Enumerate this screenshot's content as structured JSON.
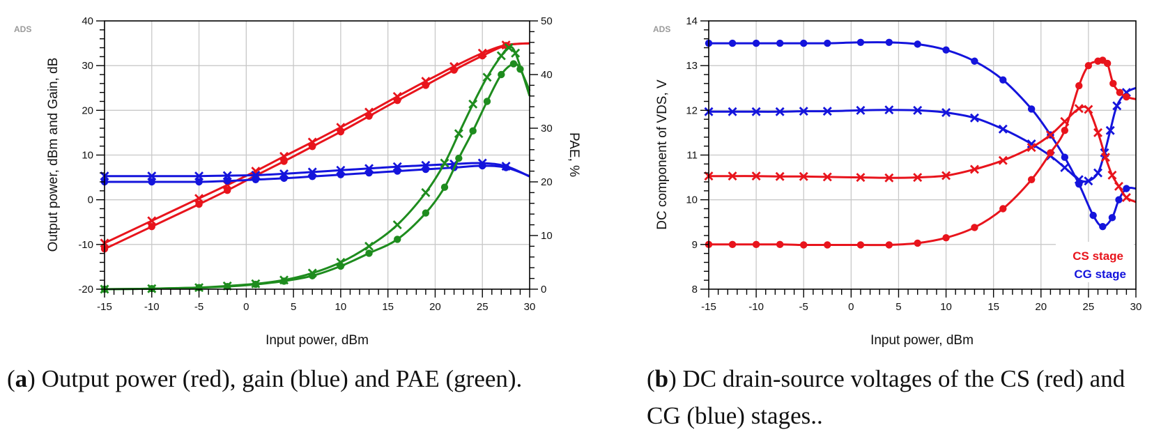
{
  "chart_data": [
    {
      "id": "a",
      "type": "line",
      "watermark": "ADS",
      "xlabel": "Input power, dBm",
      "ylabel": "Output power, dBm and Gain, dB",
      "y2label": "PAE, %",
      "xlim": [
        -15,
        30
      ],
      "ylim": [
        -20,
        40
      ],
      "y2lim": [
        0,
        50
      ],
      "xticks": [
        -15,
        -10,
        -5,
        0,
        5,
        10,
        15,
        20,
        25,
        30
      ],
      "yticks": [
        -20,
        -10,
        0,
        10,
        20,
        30,
        40
      ],
      "y2ticks": [
        0,
        10,
        20,
        30,
        40,
        50
      ],
      "grid": true,
      "caption": {
        "label": "a",
        "text": "Output power (red), gain (blue) and PAE (green)."
      },
      "series": [
        {
          "name": "Output power (x)",
          "color": "#e8141c",
          "marker": "x",
          "axis": "left",
          "x": [
            -15,
            -10,
            -5,
            -2,
            1,
            4,
            7,
            10,
            13,
            16,
            19,
            22,
            25,
            27.5,
            30
          ],
          "y": [
            -9.7,
            -4.7,
            0.3,
            3.3,
            6.4,
            9.7,
            12.9,
            16.2,
            19.6,
            23.1,
            26.5,
            29.8,
            32.8,
            34.6,
            35.0
          ]
        },
        {
          "name": "Output power (o)",
          "color": "#e8141c",
          "marker": "o",
          "axis": "left",
          "x": [
            -15,
            -10,
            -5,
            -2,
            1,
            4,
            7,
            10,
            13,
            16,
            19,
            22,
            25,
            27.5,
            30
          ],
          "y": [
            -11.0,
            -6.0,
            -1.0,
            2.1,
            5.4,
            8.6,
            11.9,
            15.2,
            18.7,
            22.2,
            25.6,
            29.0,
            32.2,
            34.5,
            35.0
          ]
        },
        {
          "name": "Gain (x)",
          "color": "#1414dc",
          "marker": "x",
          "axis": "left",
          "x": [
            -15,
            -10,
            -5,
            -2,
            1,
            4,
            7,
            10,
            13,
            16,
            19,
            22,
            25,
            27.5,
            30
          ],
          "y": [
            5.3,
            5.3,
            5.3,
            5.4,
            5.5,
            5.8,
            6.2,
            6.6,
            7.0,
            7.4,
            7.7,
            8.0,
            8.2,
            7.5,
            5.2
          ]
        },
        {
          "name": "Gain (o)",
          "color": "#1414dc",
          "marker": "o",
          "axis": "left",
          "x": [
            -15,
            -10,
            -5,
            -2,
            1,
            4,
            7,
            10,
            13,
            16,
            19,
            22,
            25,
            27.5,
            30
          ],
          "y": [
            4.0,
            4.0,
            4.0,
            4.2,
            4.5,
            4.8,
            5.2,
            5.6,
            6.0,
            6.4,
            6.8,
            7.2,
            7.6,
            7.2,
            5.3
          ]
        },
        {
          "name": "PAE (x)",
          "color": "#1e8c1e",
          "marker": "x",
          "axis": "right",
          "x": [
            -15,
            -10,
            -5,
            -2,
            1,
            4,
            7,
            10,
            13,
            16,
            19,
            21,
            22.5,
            24,
            25.5,
            27,
            27.8,
            28.5,
            30
          ],
          "y": [
            0,
            0.1,
            0.3,
            0.6,
            1.0,
            1.7,
            3.0,
            5.0,
            8.0,
            12.0,
            18.0,
            23.5,
            29.0,
            34.5,
            39.5,
            43.5,
            45.0,
            44.0,
            36.0
          ]
        },
        {
          "name": "PAE (o)",
          "color": "#1e8c1e",
          "marker": "o",
          "axis": "right",
          "x": [
            -15,
            -10,
            -5,
            -2,
            1,
            4,
            7,
            10,
            13,
            16,
            19,
            21,
            22.5,
            24,
            25.5,
            27,
            28.3,
            29,
            30
          ],
          "y": [
            0,
            0.1,
            0.3,
            0.5,
            0.9,
            1.5,
            2.5,
            4.3,
            6.7,
            9.3,
            14.2,
            19.0,
            24.4,
            29.5,
            35.0,
            40.0,
            42.0,
            41.0,
            37.0
          ]
        }
      ]
    },
    {
      "id": "b",
      "type": "line",
      "watermark": "ADS",
      "xlabel": "Input power, dBm",
      "ylabel": "DC component of VDS, V",
      "xlim": [
        -15,
        30
      ],
      "ylim": [
        8,
        14
      ],
      "xticks": [
        -15,
        -10,
        -5,
        0,
        5,
        10,
        15,
        20,
        25,
        30
      ],
      "yticks": [
        8,
        9,
        10,
        11,
        12,
        13,
        14
      ],
      "grid": true,
      "legend": [
        {
          "label": "CS stage",
          "color": "#e8141c"
        },
        {
          "label": "CG stage",
          "color": "#1414dc"
        }
      ],
      "caption": {
        "label": "b",
        "text": "DC drain-source voltages of the CS (red) and CG (blue) stages.."
      },
      "series": [
        {
          "name": "CG stage (o)",
          "color": "#1414dc",
          "marker": "o",
          "x": [
            -15,
            -12.5,
            -10,
            -7.5,
            -5,
            -2.5,
            1,
            4,
            7,
            10,
            13,
            16,
            19,
            21,
            22.5,
            24,
            25.5,
            26.5,
            27.5,
            28.2,
            29,
            30
          ],
          "y": [
            13.5,
            13.5,
            13.5,
            13.5,
            13.5,
            13.5,
            13.52,
            13.52,
            13.48,
            13.35,
            13.1,
            12.68,
            12.03,
            11.45,
            10.95,
            10.35,
            9.65,
            9.4,
            9.6,
            10.0,
            10.25,
            10.25
          ]
        },
        {
          "name": "CG stage (x)",
          "color": "#1414dc",
          "marker": "x",
          "x": [
            -15,
            -12.5,
            -10,
            -7.5,
            -5,
            -2.5,
            1,
            4,
            7,
            10,
            13,
            16,
            19,
            21,
            22.5,
            24,
            25,
            26,
            26.7,
            27.3,
            28,
            29,
            30
          ],
          "y": [
            11.97,
            11.97,
            11.97,
            11.97,
            11.98,
            11.98,
            12.0,
            12.01,
            12.0,
            11.95,
            11.83,
            11.58,
            11.25,
            10.98,
            10.72,
            10.45,
            10.42,
            10.6,
            11.05,
            11.55,
            12.1,
            12.4,
            12.5
          ]
        },
        {
          "name": "CS stage (x)",
          "color": "#e8141c",
          "marker": "x",
          "x": [
            -15,
            -12.5,
            -10,
            -7.5,
            -5,
            -2.5,
            1,
            4,
            7,
            10,
            13,
            16,
            19,
            21,
            22.5,
            24,
            25,
            26,
            26.8,
            27.5,
            28.2,
            29,
            30
          ],
          "y": [
            10.53,
            10.53,
            10.53,
            10.52,
            10.52,
            10.51,
            10.5,
            10.49,
            10.5,
            10.54,
            10.68,
            10.88,
            11.17,
            11.45,
            11.75,
            12.04,
            12.02,
            11.5,
            10.95,
            10.55,
            10.3,
            10.05,
            9.95
          ]
        },
        {
          "name": "CS stage (o)",
          "color": "#e8141c",
          "marker": "o",
          "x": [
            -15,
            -12.5,
            -10,
            -7.5,
            -5,
            -2.5,
            1,
            4,
            7,
            10,
            13,
            16,
            19,
            21,
            22.5,
            24,
            25,
            26,
            26.5,
            27,
            27.6,
            28.3,
            29,
            30
          ],
          "y": [
            9.0,
            9.0,
            9.0,
            9.0,
            8.99,
            8.99,
            8.99,
            8.99,
            9.03,
            9.15,
            9.38,
            9.8,
            10.45,
            11.05,
            11.55,
            12.55,
            13.0,
            13.1,
            13.12,
            13.05,
            12.6,
            12.4,
            12.3,
            12.25
          ]
        }
      ]
    }
  ]
}
